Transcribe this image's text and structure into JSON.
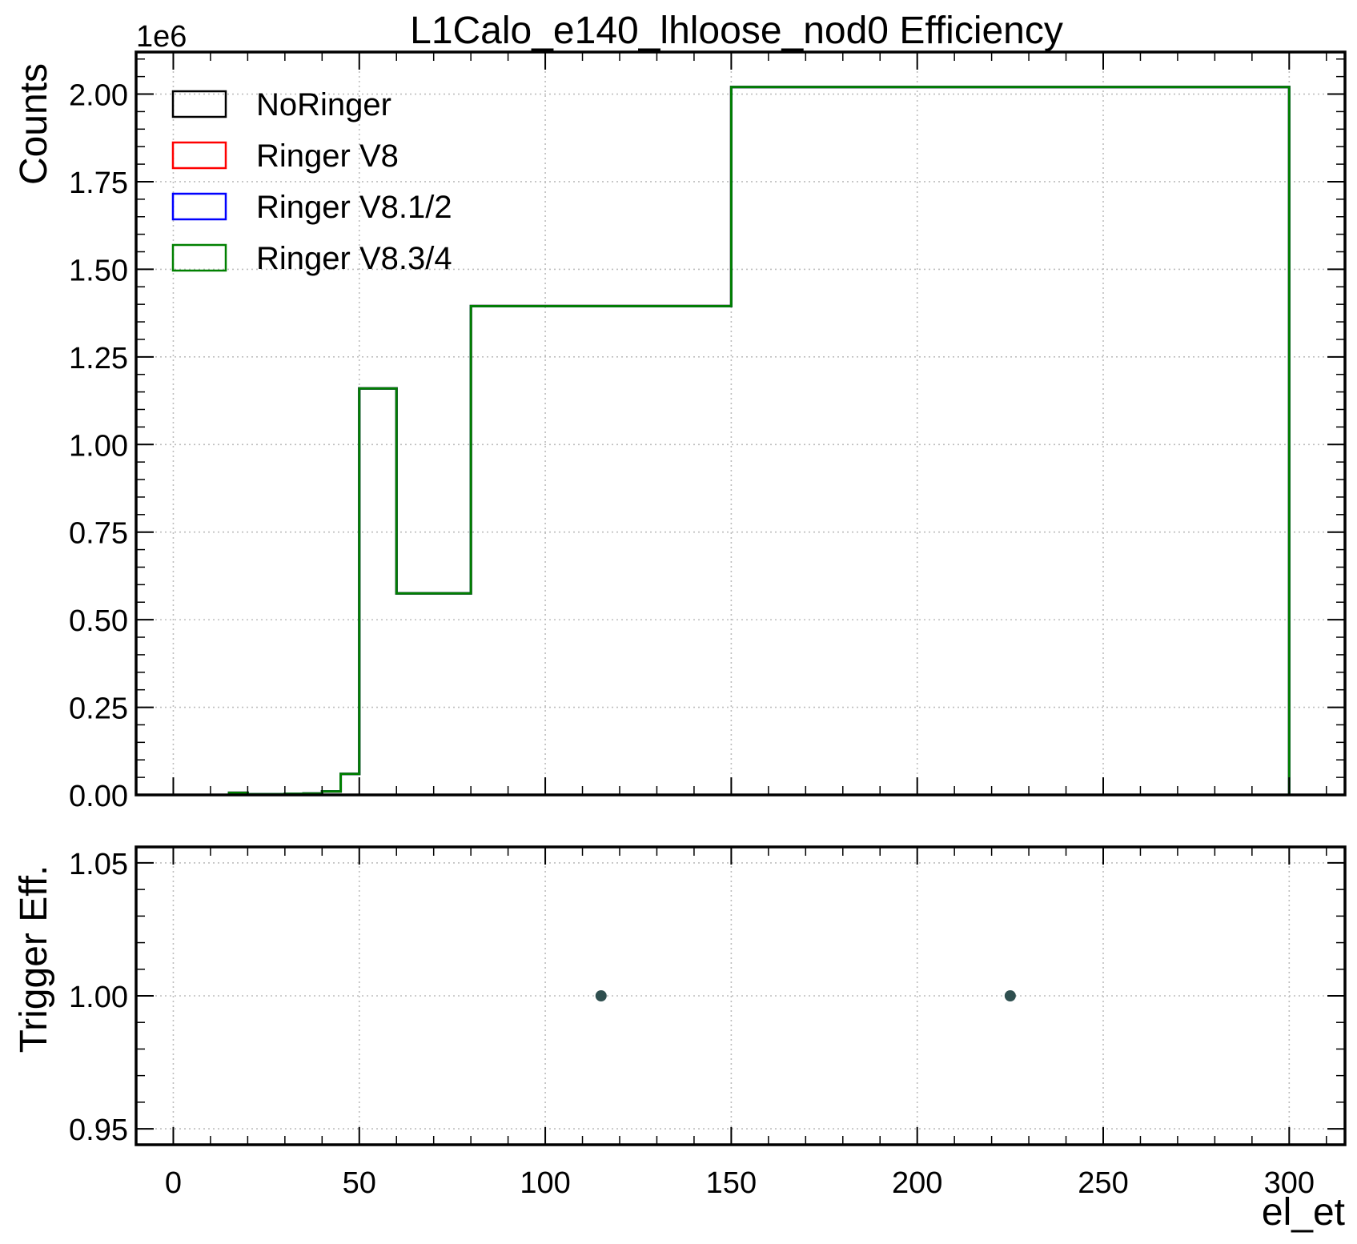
{
  "chart_data": [
    {
      "type": "line",
      "title": "L1Calo_e140_lhloose_nod0 Efficiency",
      "ylabel": "Counts",
      "y_offset_label": "1e6",
      "xlim": [
        -10,
        315
      ],
      "ylim": [
        0,
        2120000
      ],
      "grid": true,
      "legend_position": "top-left",
      "x_ticks": [
        0,
        50,
        100,
        150,
        200,
        250,
        300
      ],
      "y_ticks": [
        0,
        250000,
        500000,
        750000,
        1000000,
        1250000,
        1500000,
        1750000,
        2000000
      ],
      "y_tick_labels": [
        "0.00",
        "0.25",
        "0.50",
        "0.75",
        "1.00",
        "1.25",
        "1.50",
        "1.75",
        "2.00"
      ],
      "bin_edges": [
        0,
        5,
        10,
        15,
        20,
        25,
        30,
        35,
        40,
        45,
        50,
        60,
        80,
        150,
        300
      ],
      "series": [
        {
          "name": "NoRinger",
          "color": "#000000",
          "values": [
            0,
            0,
            0,
            6000,
            2000,
            2000,
            3000,
            4000,
            10000,
            60000,
            1160000,
            575000,
            1395000,
            2020000
          ]
        },
        {
          "name": "Ringer V8",
          "color": "#ff0000",
          "values": [
            0,
            0,
            0,
            6000,
            2000,
            2000,
            3000,
            4000,
            10000,
            60000,
            1160000,
            575000,
            1395000,
            2020000
          ]
        },
        {
          "name": "Ringer V8.1/2",
          "color": "#0000ff",
          "values": [
            0,
            0,
            0,
            6000,
            2000,
            2000,
            3000,
            4000,
            10000,
            60000,
            1160000,
            575000,
            1395000,
            2020000
          ]
        },
        {
          "name": "Ringer V8.3/4",
          "color": "#008000",
          "values": [
            0,
            0,
            0,
            6000,
            2000,
            2000,
            3000,
            4000,
            10000,
            60000,
            1160000,
            575000,
            1395000,
            2020000
          ]
        }
      ]
    },
    {
      "type": "scatter",
      "ylabel": "Trigger Eff.",
      "xlabel": "el_et",
      "xlim": [
        -10,
        315
      ],
      "ylim": [
        0.944,
        1.056
      ],
      "grid": true,
      "x_ticks": [
        0,
        50,
        100,
        150,
        200,
        250,
        300
      ],
      "x_tick_labels": [
        "0",
        "50",
        "100",
        "150",
        "200",
        "250",
        "300"
      ],
      "y_ticks": [
        0.95,
        1.0,
        1.05
      ],
      "y_tick_labels": [
        "0.95",
        "1.00",
        "1.05"
      ],
      "marker_color": "#2f4f4f",
      "points": [
        {
          "x": 115,
          "y": 1.0
        },
        {
          "x": 225,
          "y": 1.0
        }
      ]
    }
  ]
}
